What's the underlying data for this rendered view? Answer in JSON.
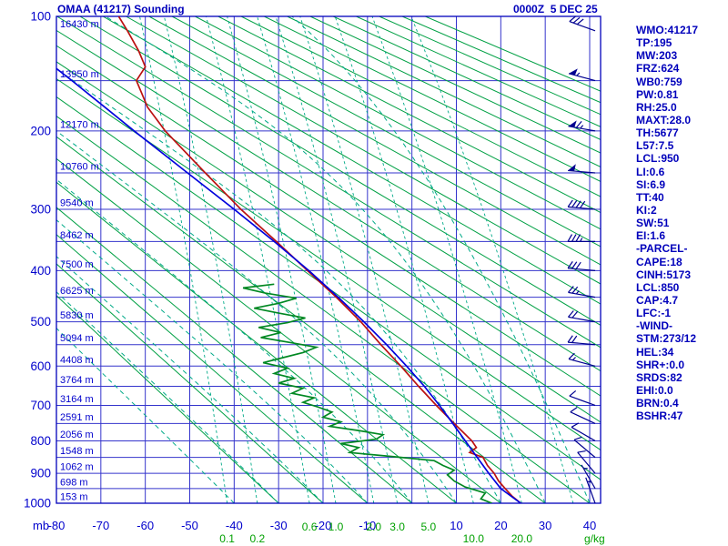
{
  "window": {
    "title": "OMAA (41217) Sounding",
    "datetime": "0000Z  5 DEC 25"
  },
  "stats_panel": {
    "color": "#0000bb",
    "lines": [
      "WMO:41217",
      "TP:195",
      "MW:203",
      "FRZ:624",
      "WB0:759",
      "PW:0.81",
      "RH:25.0",
      "MAXT:28.0",
      "TH:5677",
      "L57:7.5",
      "LCL:950",
      "LI:0.6",
      "SI:6.9",
      "TT:40",
      "KI:2",
      "SW:51",
      "EI:1.6",
      "-PARCEL-",
      "CAPE:18",
      "CINH:5173",
      "LCL:850",
      "CAP:4.7",
      "LFC:-1",
      "-WIND-",
      "STM:273/12",
      "HEL:34",
      "SHR+:0.0",
      "SRDS:82",
      "EHI:0.0",
      "BRN:0.4",
      "BSHR:47"
    ]
  },
  "chart_data": {
    "type": "line",
    "subtype": "stuve-sounding",
    "title": "OMAA (41217) Sounding",
    "timestamp": "0000Z  5 DEC 25",
    "x_axis": {
      "unit_label": "mb",
      "min": -80,
      "max": 42,
      "tick_labels": [
        -80,
        -70,
        -60,
        -50,
        -40,
        -30,
        -20,
        -10,
        10,
        20,
        30,
        40
      ]
    },
    "y_axis": {
      "scale": "p^0.2857",
      "min_mb": 100,
      "max_mb": 1000,
      "major_ticks": [
        100,
        200,
        300,
        400,
        500,
        600,
        700,
        800,
        900,
        1000
      ],
      "all_lines": [
        100,
        150,
        200,
        250,
        300,
        350,
        400,
        450,
        500,
        550,
        600,
        650,
        700,
        750,
        800,
        850,
        900,
        950,
        1000
      ]
    },
    "height_labels": [
      [
        100,
        "16430 m"
      ],
      [
        150,
        "13950 m"
      ],
      [
        200,
        "12170 m"
      ],
      [
        250,
        "10760 m"
      ],
      [
        300,
        "9540 m"
      ],
      [
        350,
        "8462 m"
      ],
      [
        400,
        "7500 m"
      ],
      [
        450,
        "6625 m"
      ],
      [
        500,
        "5830 m"
      ],
      [
        550,
        "5094 m"
      ],
      [
        600,
        "4408 m"
      ],
      [
        650,
        "3764 m"
      ],
      [
        700,
        "3164 m"
      ],
      [
        750,
        "2591 m"
      ],
      [
        800,
        "2056 m"
      ],
      [
        850,
        "1548 m"
      ],
      [
        900,
        "1062 m"
      ],
      [
        950,
        "698 m"
      ],
      [
        1000,
        "153 m"
      ]
    ],
    "dry_adiabats_c": {
      "start": -30,
      "end": 260,
      "step": 10
    },
    "moist_adiabats_c": {
      "start": -40,
      "end": 40,
      "step": 10
    },
    "mixing_ratio_labels": [
      [
        "0.1",
        2
      ],
      [
        "0.2",
        2
      ],
      [
        "0.6",
        1
      ],
      [
        "1.0",
        1
      ],
      [
        "2.0",
        1
      ],
      [
        "3.0",
        1
      ],
      [
        "5.0",
        1
      ],
      [
        "10.0",
        2
      ],
      [
        "20.0",
        2
      ]
    ],
    "mixing_ratio_unit": "g/kg",
    "series": [
      {
        "name": "temperature",
        "color": "#bb1111",
        "points": [
          [
            1000,
            24.5
          ],
          [
            975,
            22.5
          ],
          [
            950,
            21
          ],
          [
            925,
            19.5
          ],
          [
            900,
            18.5
          ],
          [
            875,
            17
          ],
          [
            850,
            16
          ],
          [
            835,
            13
          ],
          [
            820,
            14.5
          ],
          [
            800,
            13.5
          ],
          [
            750,
            9.5
          ],
          [
            700,
            5.5
          ],
          [
            650,
            1.5
          ],
          [
            600,
            -2.5
          ],
          [
            550,
            -7
          ],
          [
            500,
            -11.5
          ],
          [
            450,
            -17
          ],
          [
            400,
            -23.5
          ],
          [
            350,
            -30.5
          ],
          [
            300,
            -38.5
          ],
          [
            250,
            -46.5
          ],
          [
            200,
            -55.5
          ],
          [
            175,
            -59.5
          ],
          [
            150,
            -62
          ],
          [
            138,
            -60
          ],
          [
            125,
            -61.5
          ],
          [
            110,
            -64
          ],
          [
            100,
            -66
          ]
        ]
      },
      {
        "name": "dewpoint",
        "color": "#008822",
        "points": [
          [
            1000,
            18
          ],
          [
            985,
            15.5
          ],
          [
            965,
            16.5
          ],
          [
            945,
            12
          ],
          [
            925,
            9.5
          ],
          [
            905,
            8
          ],
          [
            890,
            9.5
          ],
          [
            875,
            7
          ],
          [
            860,
            5
          ],
          [
            848,
            -4
          ],
          [
            835,
            -14
          ],
          [
            820,
            -12
          ],
          [
            808,
            -16
          ],
          [
            795,
            -8
          ],
          [
            782,
            -6.5
          ],
          [
            770,
            -12
          ],
          [
            758,
            -18.5
          ],
          [
            745,
            -16
          ],
          [
            732,
            -20
          ],
          [
            718,
            -18
          ],
          [
            705,
            -21
          ],
          [
            692,
            -24.5
          ],
          [
            680,
            -22
          ],
          [
            668,
            -27
          ],
          [
            655,
            -24.5
          ],
          [
            642,
            -30
          ],
          [
            630,
            -26.5
          ],
          [
            618,
            -31
          ],
          [
            605,
            -28
          ],
          [
            592,
            -33.5
          ],
          [
            580,
            -29
          ],
          [
            568,
            -24.5
          ],
          [
            556,
            -21.5
          ],
          [
            545,
            -27.5
          ],
          [
            534,
            -34
          ],
          [
            523,
            -29.5
          ],
          [
            512,
            -34.5
          ],
          [
            502,
            -28
          ],
          [
            492,
            -24
          ],
          [
            482,
            -30
          ],
          [
            472,
            -35.5
          ],
          [
            462,
            -30
          ],
          [
            452,
            -26
          ],
          [
            442,
            -33
          ],
          [
            432,
            -38
          ],
          [
            425,
            -31
          ]
        ]
      },
      {
        "name": "parcel",
        "color": "#0000dd",
        "points": [
          [
            1000,
            24.5
          ],
          [
            950,
            20
          ],
          [
            900,
            17.3
          ],
          [
            850,
            14.7
          ],
          [
            800,
            12
          ],
          [
            750,
            9.2
          ],
          [
            700,
            6.2
          ],
          [
            650,
            2.8
          ],
          [
            600,
            -1.2
          ],
          [
            550,
            -5.7
          ],
          [
            500,
            -10.8
          ],
          [
            450,
            -16.6
          ],
          [
            400,
            -23.2
          ],
          [
            350,
            -31
          ],
          [
            300,
            -40
          ],
          [
            250,
            -50.5
          ],
          [
            200,
            -62.5
          ],
          [
            150,
            -76.5
          ],
          [
            138,
            -80.5
          ]
        ]
      }
    ],
    "winds": [
      [
        110,
        290,
        30
      ],
      [
        150,
        285,
        55
      ],
      [
        200,
        280,
        65
      ],
      [
        250,
        275,
        50
      ],
      [
        300,
        275,
        40
      ],
      [
        350,
        270,
        35
      ],
      [
        400,
        275,
        30
      ],
      [
        450,
        280,
        25
      ],
      [
        500,
        280,
        20
      ],
      [
        550,
        275,
        20
      ],
      [
        600,
        285,
        15
      ],
      [
        700,
        290,
        10
      ],
      [
        750,
        295,
        10
      ],
      [
        800,
        300,
        10
      ],
      [
        850,
        310,
        10
      ],
      [
        900,
        320,
        10
      ],
      [
        950,
        330,
        5
      ],
      [
        1000,
        340,
        5
      ]
    ],
    "colors": {
      "grid": "#3434cc",
      "border": "#0000bb",
      "axis_text": "#0000cc",
      "dry_adiabat": "#00a044",
      "moist_adiabat": "#00aa88",
      "mixing_ratio": "#00aa88",
      "mixing_text": "#00a000",
      "wind_barb": "#000090"
    }
  }
}
